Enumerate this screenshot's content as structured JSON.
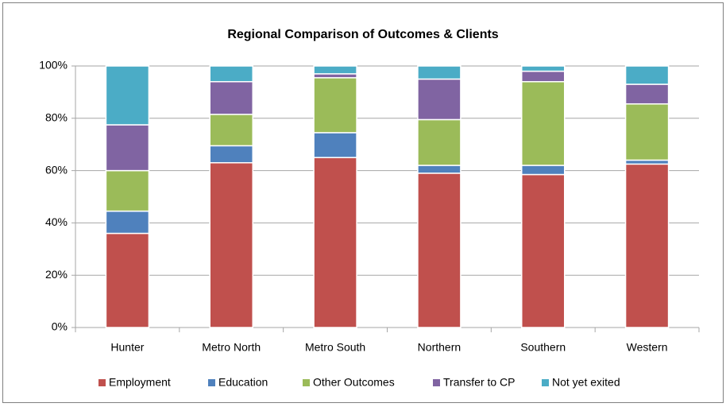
{
  "chart_data": {
    "type": "stacked_bar",
    "title": "Regional Comparison of Outcomes & Clients",
    "categories": [
      "Hunter",
      "Metro North",
      "Metro South",
      "Northern",
      "Southern",
      "Western"
    ],
    "series": [
      {
        "name": "Employment",
        "color": "#c0504d",
        "values": [
          36,
          63,
          65,
          59,
          58.5,
          62.5
        ]
      },
      {
        "name": "Education",
        "color": "#4f81bd",
        "values": [
          8.5,
          6.5,
          9.5,
          3,
          3.5,
          1.5
        ]
      },
      {
        "name": "Other Outcomes",
        "color": "#9bbb59",
        "values": [
          15.5,
          12,
          21,
          17.5,
          32,
          21.5
        ]
      },
      {
        "name": "Transfer to CP",
        "color": "#8064a2",
        "values": [
          17.5,
          12.5,
          1.5,
          15.5,
          4,
          7.5
        ]
      },
      {
        "name": "Not yet exited",
        "color": "#4bacc6",
        "values": [
          22.5,
          6,
          3,
          5,
          2,
          7
        ]
      }
    ],
    "ylim": [
      0,
      100
    ],
    "yticks": [
      {
        "value": 0,
        "label": "0%"
      },
      {
        "value": 20,
        "label": "20%"
      },
      {
        "value": 40,
        "label": "40%"
      },
      {
        "value": 60,
        "label": "60%"
      },
      {
        "value": 80,
        "label": "80%"
      },
      {
        "value": 100,
        "label": "100%"
      }
    ],
    "grid": true,
    "legend": "bottom"
  }
}
